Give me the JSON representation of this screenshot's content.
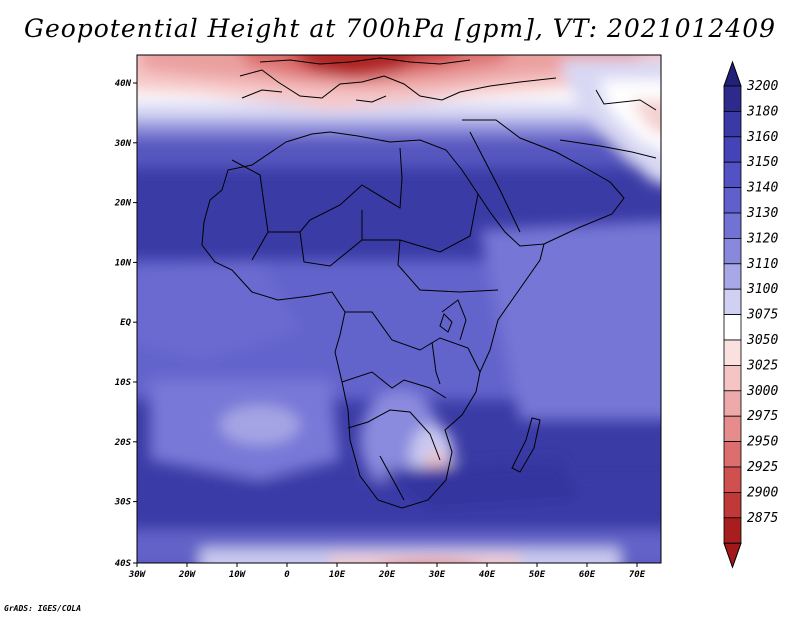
{
  "title": "Geopotential Height at 700hPa [gpm], VT: 2021012409",
  "credit": "GrADS: IGES/COLA",
  "map": {
    "lon_range": [
      -30,
      75
    ],
    "lat_range": [
      -40,
      45
    ],
    "x_ticks": [
      "30W",
      "20W",
      "10W",
      "0",
      "10E",
      "20E",
      "30E",
      "40E",
      "50E",
      "60E",
      "70E"
    ],
    "y_ticks": [
      "40N",
      "30N",
      "20N",
      "10N",
      "EQ",
      "10S",
      "20S",
      "30S",
      "40S"
    ]
  },
  "colorbar": {
    "levels": [
      "3200",
      "3180",
      "3160",
      "3150",
      "3140",
      "3130",
      "3120",
      "3110",
      "3100",
      "3075",
      "3050",
      "3025",
      "3000",
      "2975",
      "2950",
      "2925",
      "2900",
      "2875"
    ],
    "colors": [
      "#2d2a8c",
      "#3a3aa6",
      "#4444b8",
      "#5252c4",
      "#6060cc",
      "#7272d4",
      "#8888dc",
      "#a8a8e6",
      "#d0d0f2",
      "#ffffff",
      "#fbe0e0",
      "#f5c4c4",
      "#eeaaaa",
      "#e68c8c",
      "#dc6e6e",
      "#d05050",
      "#c03838",
      "#a81e1e"
    ],
    "top_arrow_color": "#23207a",
    "bottom_arrow_color": "#a01818"
  }
}
